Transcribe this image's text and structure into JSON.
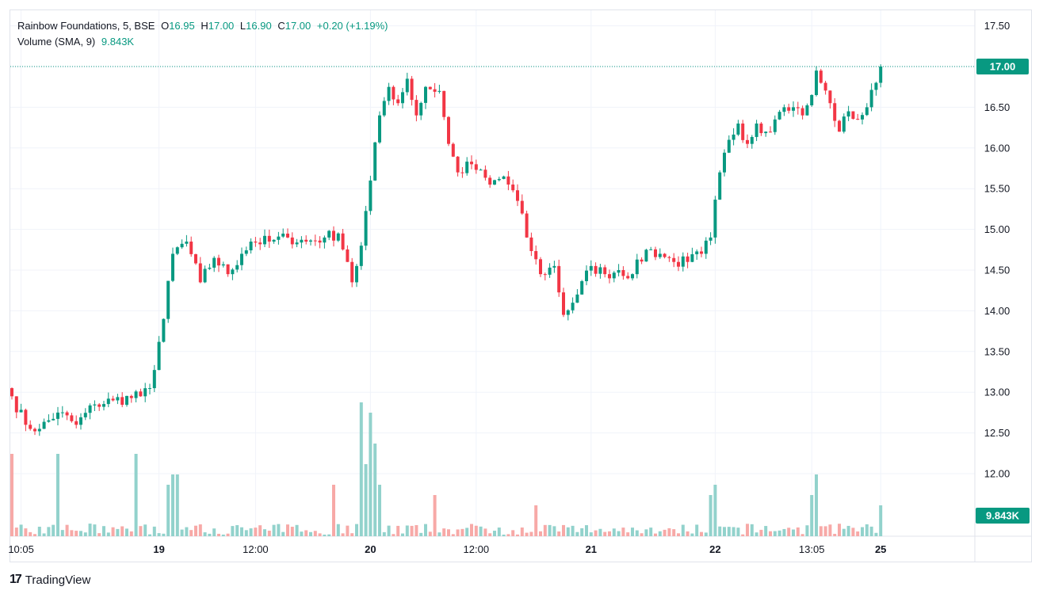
{
  "legend": {
    "symbol": "Rainbow Foundations, 5, BSE",
    "open_label": "O",
    "open": "16.95",
    "high_label": "H",
    "high": "17.00",
    "low_label": "L",
    "low": "16.90",
    "close_label": "C",
    "close": "17.00",
    "change": "+0.20 (+1.19%)",
    "volume_label": "Volume (SMA, 9)",
    "volume_value": "9.843K"
  },
  "price_badge": "17.00",
  "volume_badge": "9.843K",
  "brand": {
    "name": "TradingView",
    "logo": "17"
  },
  "colors": {
    "up": "#089981",
    "down": "#f23645",
    "up_vol": "#92d2cc",
    "down_vol": "#f7a9a7",
    "grid": "#f0f3fa"
  },
  "chart_data": {
    "type": "candlestick",
    "y_axis": {
      "min": 11.75,
      "max": 17.5,
      "ticks": [
        "17.50",
        "17.00",
        "16.50",
        "16.00",
        "15.50",
        "15.00",
        "14.50",
        "14.00",
        "13.50",
        "13.00",
        "12.50",
        "12.00"
      ]
    },
    "x_axis": {
      "ticks": [
        {
          "label": "10:05",
          "bar": 2,
          "bold": false
        },
        {
          "label": "19",
          "bar": 32,
          "bold": true
        },
        {
          "label": "12:00",
          "bar": 53,
          "bold": false
        },
        {
          "label": "20",
          "bar": 78,
          "bold": true
        },
        {
          "label": "12:00",
          "bar": 101,
          "bold": false
        },
        {
          "label": "21",
          "bar": 126,
          "bold": true
        },
        {
          "label": "22",
          "bar": 153,
          "bold": true
        },
        {
          "label": "13:05",
          "bar": 174,
          "bold": false
        },
        {
          "label": "25",
          "bar": 189,
          "bold": true
        }
      ]
    },
    "last_price": 17.0,
    "anchors": [
      [
        0,
        12.95
      ],
      [
        3,
        12.6
      ],
      [
        6,
        12.55
      ],
      [
        10,
        12.75
      ],
      [
        14,
        12.6
      ],
      [
        18,
        12.85
      ],
      [
        22,
        12.9
      ],
      [
        28,
        12.95
      ],
      [
        30,
        13.05
      ],
      [
        33,
        13.9
      ],
      [
        35,
        14.7
      ],
      [
        38,
        14.85
      ],
      [
        41,
        14.35
      ],
      [
        44,
        14.65
      ],
      [
        47,
        14.45
      ],
      [
        50,
        14.7
      ],
      [
        52,
        14.85
      ],
      [
        56,
        14.85
      ],
      [
        60,
        14.9
      ],
      [
        64,
        14.85
      ],
      [
        68,
        14.9
      ],
      [
        71,
        14.95
      ],
      [
        73,
        14.6
      ],
      [
        74,
        14.35
      ],
      [
        76,
        14.8
      ],
      [
        78,
        15.6
      ],
      [
        80,
        16.4
      ],
      [
        82,
        16.75
      ],
      [
        84,
        16.55
      ],
      [
        86,
        16.85
      ],
      [
        88,
        16.4
      ],
      [
        90,
        16.75
      ],
      [
        93,
        16.7
      ],
      [
        95,
        16.05
      ],
      [
        97,
        15.7
      ],
      [
        100,
        15.8
      ],
      [
        104,
        15.55
      ],
      [
        107,
        15.65
      ],
      [
        110,
        15.35
      ],
      [
        112,
        14.9
      ],
      [
        115,
        14.45
      ],
      [
        118,
        14.55
      ],
      [
        120,
        13.95
      ],
      [
        123,
        14.2
      ],
      [
        126,
        14.55
      ],
      [
        129,
        14.45
      ],
      [
        132,
        14.5
      ],
      [
        135,
        14.45
      ],
      [
        138,
        14.75
      ],
      [
        141,
        14.7
      ],
      [
        144,
        14.6
      ],
      [
        147,
        14.6
      ],
      [
        150,
        14.7
      ],
      [
        152,
        14.9
      ],
      [
        154,
        15.7
      ],
      [
        156,
        16.1
      ],
      [
        158,
        16.3
      ],
      [
        160,
        16.05
      ],
      [
        162,
        16.3
      ],
      [
        164,
        16.2
      ],
      [
        166,
        16.35
      ],
      [
        168,
        16.5
      ],
      [
        170,
        16.5
      ],
      [
        172,
        16.4
      ],
      [
        174,
        16.65
      ],
      [
        175,
        16.95
      ],
      [
        176,
        16.8
      ],
      [
        178,
        16.55
      ],
      [
        180,
        16.2
      ],
      [
        182,
        16.45
      ],
      [
        184,
        16.35
      ],
      [
        186,
        16.5
      ],
      [
        188,
        16.8
      ],
      [
        189,
        17.0
      ]
    ],
    "notable_volumes": [
      [
        0,
        8
      ],
      [
        10,
        8
      ],
      [
        27,
        8
      ],
      [
        34,
        5
      ],
      [
        35,
        6
      ],
      [
        36,
        6
      ],
      [
        70,
        5
      ],
      [
        76,
        13
      ],
      [
        77,
        7
      ],
      [
        78,
        12
      ],
      [
        79,
        9
      ],
      [
        80,
        5
      ],
      [
        92,
        4
      ],
      [
        114,
        3
      ],
      [
        152,
        4
      ],
      [
        153,
        5
      ],
      [
        174,
        4
      ],
      [
        175,
        6
      ],
      [
        189,
        3
      ]
    ]
  }
}
